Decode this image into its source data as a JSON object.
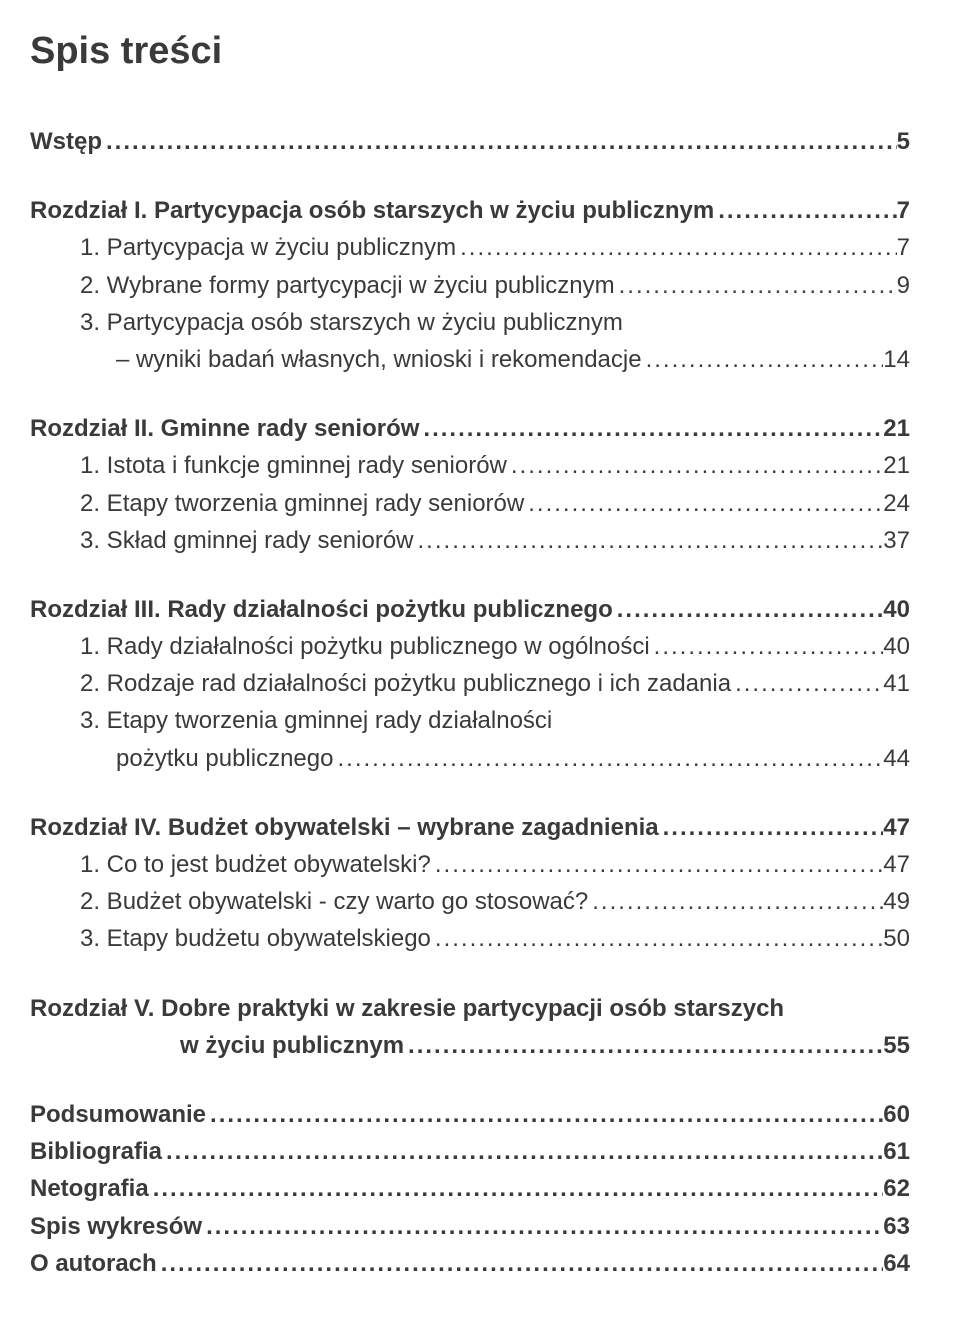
{
  "title": "Spis treści",
  "colors": {
    "text": "#3a3a3a",
    "background": "#ffffff"
  },
  "typography": {
    "title_fontsize": 38,
    "body_fontsize": 24,
    "font_family": "Trebuchet MS"
  },
  "groups": [
    {
      "rows": [
        {
          "label": "Wstęp",
          "page": "5",
          "bold": true,
          "indent": 0
        }
      ]
    },
    {
      "rows": [
        {
          "label": "Rozdział I. Partycypacja osób starszych w życiu publicznym",
          "page": "7",
          "bold": true,
          "indent": 0
        },
        {
          "label": "1. Partycypacja w życiu publicznym",
          "page": "7",
          "bold": false,
          "indent": 1
        },
        {
          "label": "2. Wybrane formy partycypacji w życiu publicznym",
          "page": "9",
          "bold": false,
          "indent": 1
        },
        {
          "label": "3. Partycypacja osób starszych w życiu publicznym",
          "page": "",
          "bold": false,
          "indent": 1,
          "noleader": true
        },
        {
          "label": "– wyniki badań własnych, wnioski i rekomendacje",
          "page": "14",
          "bold": false,
          "indent": 0,
          "hanging": "cont-hang3"
        }
      ]
    },
    {
      "rows": [
        {
          "label": "Rozdział II. Gminne rady seniorów",
          "page": "21",
          "bold": true,
          "indent": 0
        },
        {
          "label": "1. Istota i funkcje gminnej rady seniorów",
          "page": "21",
          "bold": false,
          "indent": 1
        },
        {
          "label": "2. Etapy tworzenia gminnej rady seniorów",
          "page": "24",
          "bold": false,
          "indent": 1
        },
        {
          "label": "3. Skład gminnej rady seniorów",
          "page": "37",
          "bold": false,
          "indent": 1
        }
      ]
    },
    {
      "rows": [
        {
          "label": "Rozdział III. Rady działalności pożytku publicznego",
          "page": "40",
          "bold": true,
          "indent": 0
        },
        {
          "label": "1. Rady działalności pożytku publicznego w ogólności",
          "page": "40",
          "bold": false,
          "indent": 1
        },
        {
          "label": "2. Rodzaje rad działalności pożytku publicznego i ich zadania",
          "page": "41",
          "bold": false,
          "indent": 1
        },
        {
          "label": "3. Etapy tworzenia gminnej rady działalności",
          "page": "",
          "bold": false,
          "indent": 1,
          "noleader": true
        },
        {
          "label": "pożytku publicznego",
          "page": "44",
          "bold": false,
          "indent": 0,
          "hanging": "cont-hang3"
        }
      ]
    },
    {
      "rows": [
        {
          "label": "Rozdział IV. Budżet obywatelski – wybrane zagadnienia",
          "page": "47",
          "bold": true,
          "indent": 0
        },
        {
          "label": "1. Co to jest budżet obywatelski?",
          "page": "47",
          "bold": false,
          "indent": 1
        },
        {
          "label": "2. Budżet obywatelski - czy warto go stosować?",
          "page": "49",
          "bold": false,
          "indent": 1
        },
        {
          "label": "3. Etapy budżetu obywatelskiego",
          "page": "50",
          "bold": false,
          "indent": 1
        }
      ]
    },
    {
      "rows": [
        {
          "label": "Rozdział V. Dobre praktyki w zakresie partycypacji osób starszych",
          "page": "",
          "bold": true,
          "indent": 0,
          "noleader": true
        },
        {
          "label": "w życiu publicznym",
          "page": "55",
          "bold": true,
          "indent": 0,
          "hanging": "chapter5-indent"
        }
      ]
    },
    {
      "rows": [
        {
          "label": "Podsumowanie",
          "page": "60",
          "bold": true,
          "indent": 0
        },
        {
          "label": "Bibliografia",
          "page": "61",
          "bold": true,
          "indent": 0
        },
        {
          "label": "Netografia",
          "page": "62",
          "bold": true,
          "indent": 0
        },
        {
          "label": "Spis wykresów",
          "page": "63",
          "bold": true,
          "indent": 0
        },
        {
          "label": "O autorach",
          "page": "64",
          "bold": true,
          "indent": 0
        }
      ]
    }
  ],
  "leader_char": "."
}
